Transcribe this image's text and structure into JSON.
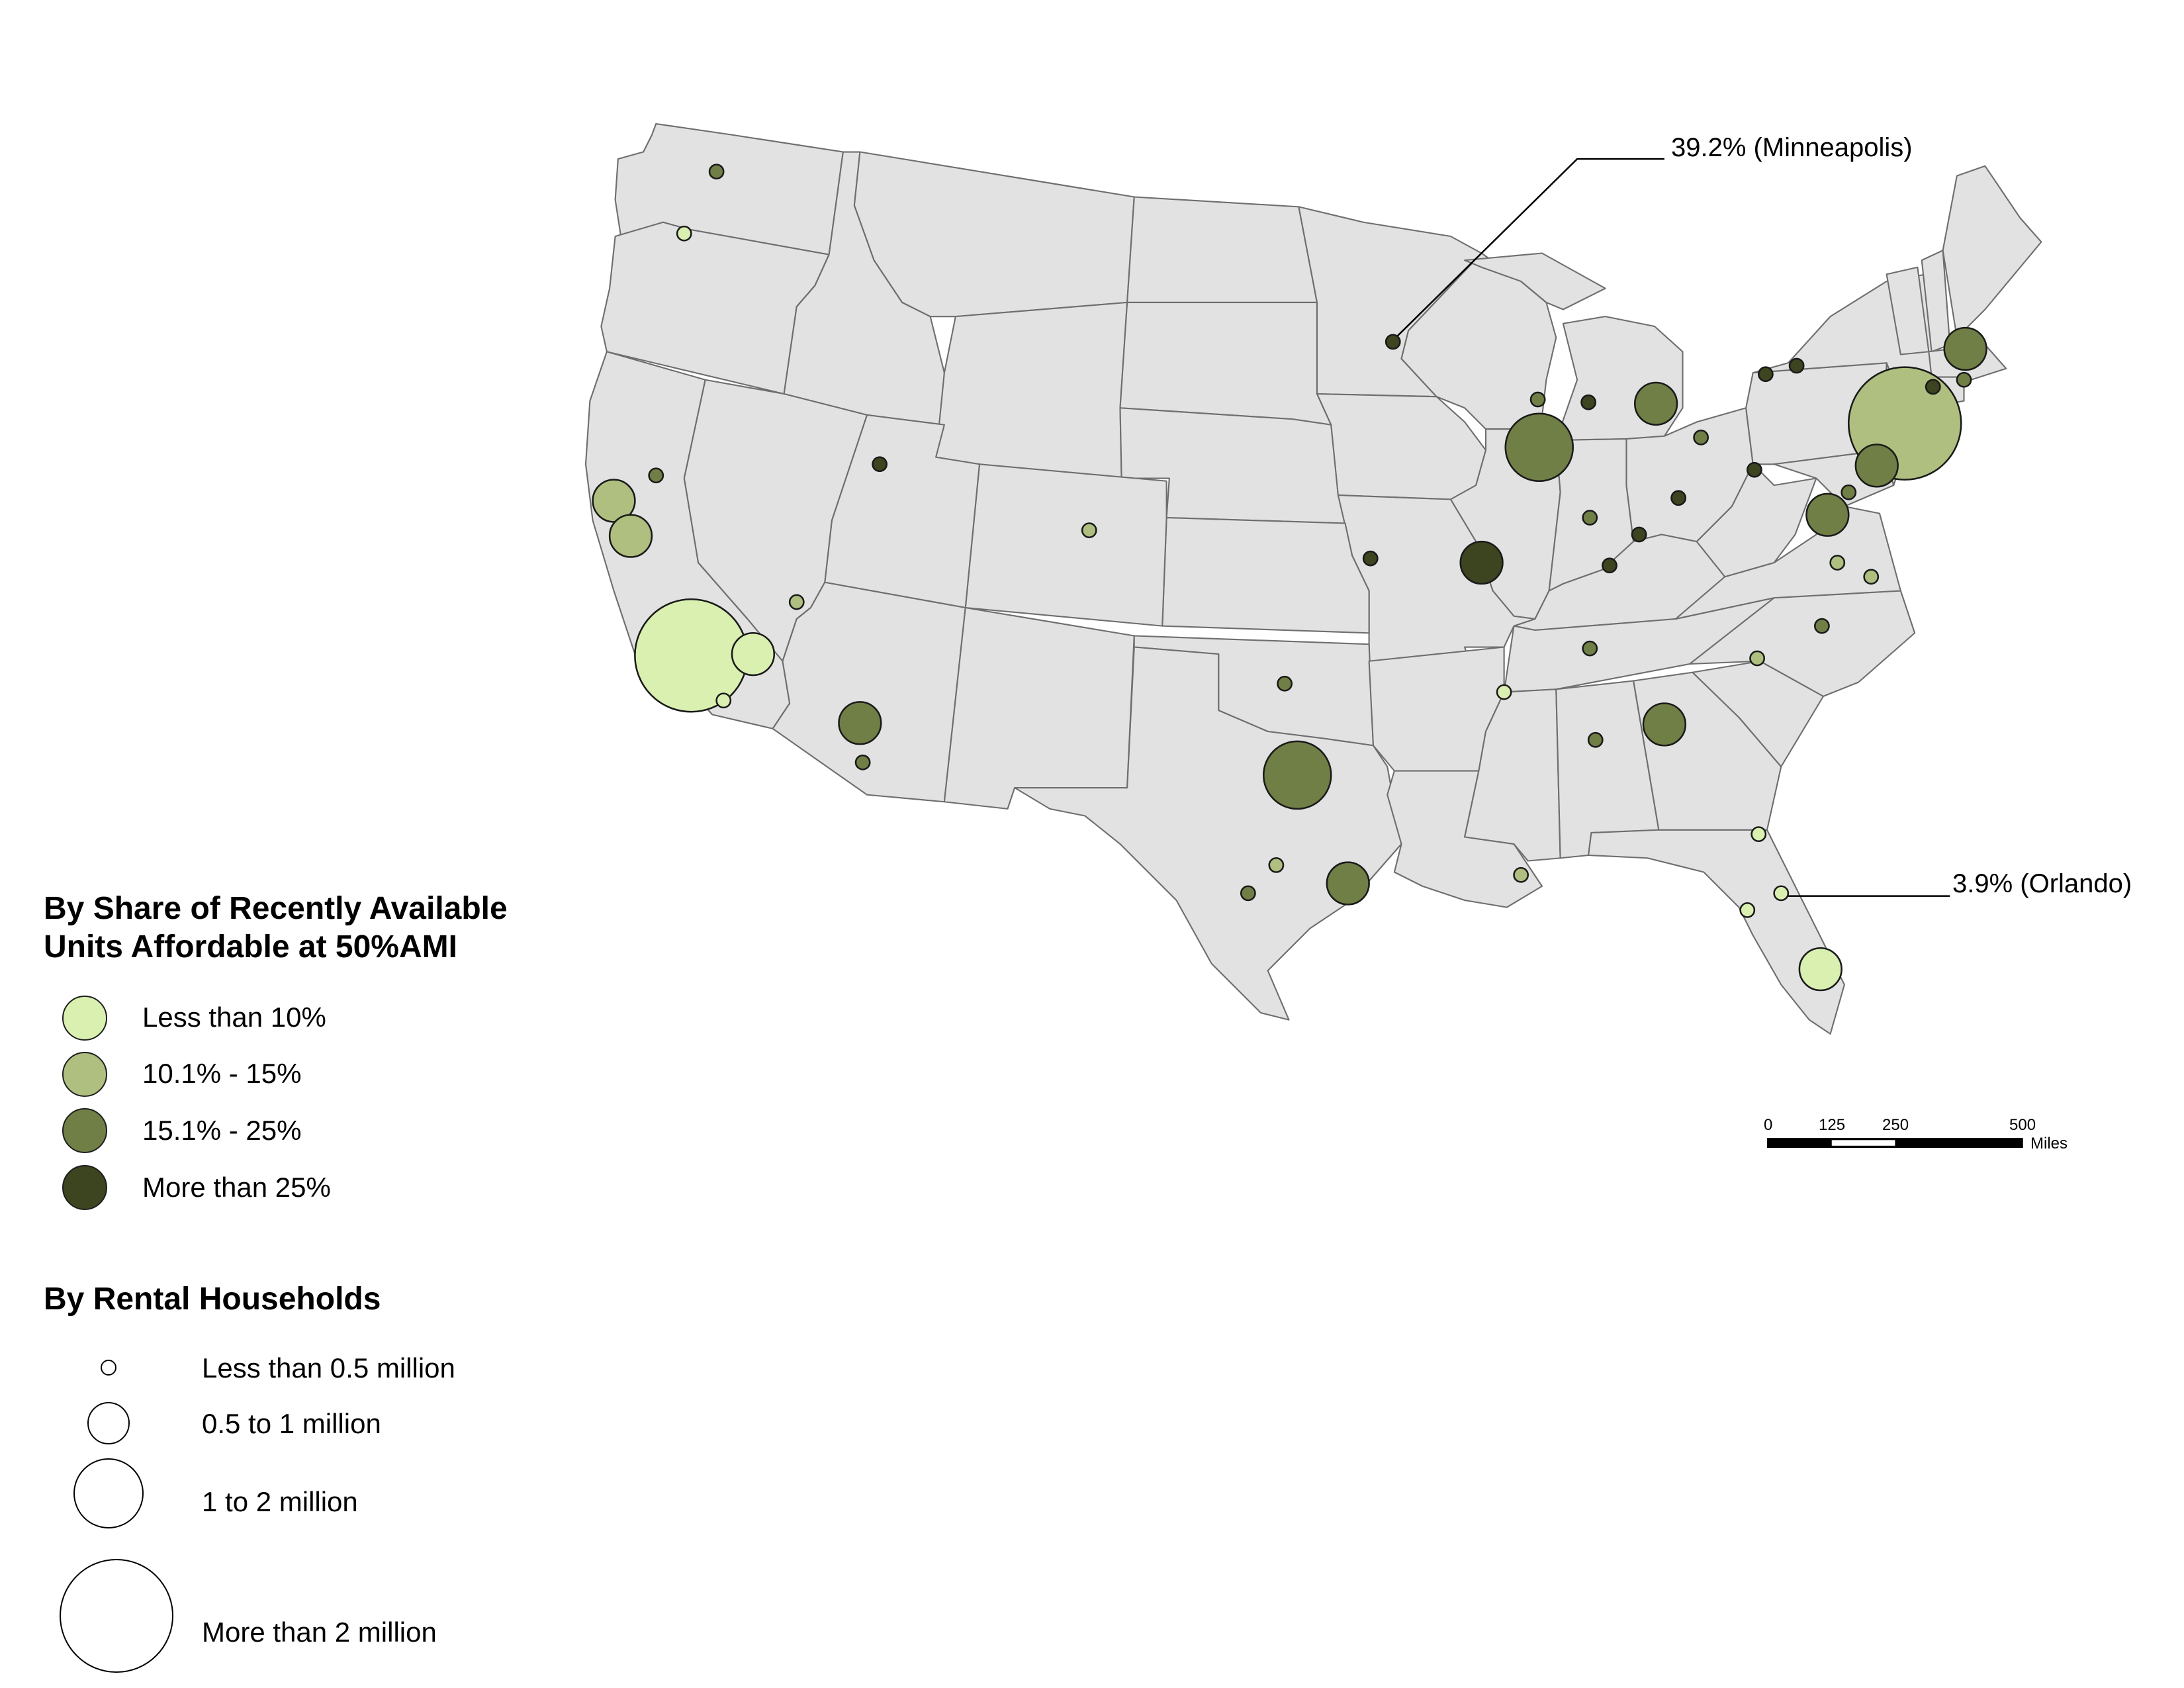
{
  "colors": {
    "land": "#e2e2e2",
    "border": "#6e6e6e",
    "class_less_10": "#d9f0b0",
    "class_10_15": "#aebf80",
    "class_15_25": "#6f7f46",
    "class_over_25": "#3c4420",
    "size_circle": "#ffffff"
  },
  "legend_share": {
    "title_line1": "By Share of Recently Available",
    "title_line2": "Units Affordable at 50%AMI",
    "items": [
      {
        "label": "Less than 10%",
        "color_key": "class_less_10"
      },
      {
        "label": "10.1% - 15%",
        "color_key": "class_10_15"
      },
      {
        "label": "15.1% - 25%",
        "color_key": "class_15_25"
      },
      {
        "label": "More than 25%",
        "color_key": "class_over_25"
      }
    ]
  },
  "legend_size": {
    "title": "By Rental Households",
    "items": [
      {
        "label": "Less than 0.5 million"
      },
      {
        "label": "0.5 to 1 million"
      },
      {
        "label": "1 to 2 million"
      },
      {
        "label": "More than 2 million"
      }
    ]
  },
  "annotations": {
    "minneapolis": "39.2% (Minneapolis)",
    "orlando": "3.9% (Orlando)"
  },
  "scale_bar": {
    "ticks": [
      "0",
      "125",
      "250",
      "500"
    ],
    "unit": "Miles"
  }
}
